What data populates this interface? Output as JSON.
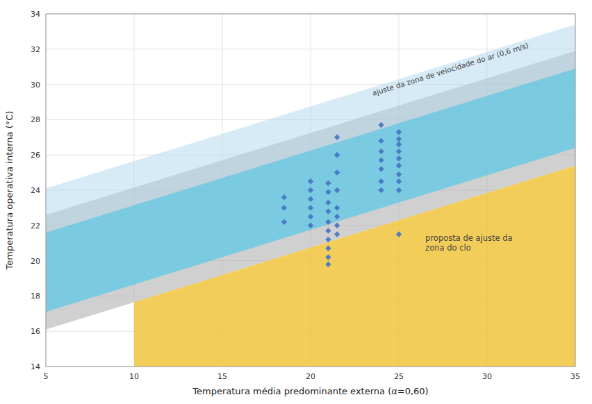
{
  "chart_data": {
    "type": "scatter",
    "xlabel": "Temperatura média predominante externa (α=0,60)",
    "ylabel": "Temperatura operativa interna (°C)",
    "xlim": [
      5,
      35
    ],
    "ylim": [
      14,
      34
    ],
    "xticks": [
      5,
      10,
      15,
      20,
      25,
      30,
      35
    ],
    "yticks": [
      14,
      16,
      18,
      20,
      22,
      24,
      26,
      28,
      30,
      32,
      34
    ],
    "grid": true,
    "bands": [
      {
        "color": "#aaaaaa",
        "x": [
          5,
          35
        ],
        "lower": [
          16.1,
          25.4
        ],
        "upper": [
          22.6,
          31.9
        ]
      },
      {
        "color": "#f0c030",
        "x": [
          10,
          35
        ],
        "lower": [
          14,
          14
        ],
        "upper": [
          17.65,
          25.4
        ]
      },
      {
        "color": "#55c8e8",
        "x": [
          5,
          35
        ],
        "lower": [
          17.1,
          26.4
        ],
        "upper": [
          21.6,
          30.9
        ]
      },
      {
        "color": "#b0d8ee",
        "x": [
          5,
          35
        ],
        "lower": [
          21.6,
          30.9
        ],
        "upper": [
          24.1,
          33.4
        ]
      }
    ],
    "series": [
      {
        "color": "#4472C4",
        "marker": "diamond",
        "x": [
          18.5,
          18.5,
          18.5,
          20.0,
          20.0,
          20.0,
          20.0,
          20.0,
          20.0,
          21.0,
          21.0,
          21.0,
          21.0,
          21.0,
          21.0,
          21.0,
          21.0,
          21.0,
          21.0,
          21.5,
          21.5,
          21.5,
          21.5,
          21.5,
          21.5,
          21.5,
          21.5,
          24.0,
          24.0,
          24.0,
          24.0,
          24.0,
          24.0,
          24.0,
          25.0,
          25.0,
          25.0,
          25.0,
          25.0,
          25.0,
          25.0,
          25.0,
          25.0,
          25.0
        ],
        "values": [
          22.2,
          23.0,
          23.6,
          22.0,
          22.5,
          23.0,
          23.5,
          24.0,
          24.5,
          19.8,
          20.2,
          20.7,
          21.2,
          21.7,
          22.2,
          22.8,
          23.3,
          23.9,
          24.4,
          21.5,
          22.0,
          22.5,
          23.0,
          24.0,
          25.0,
          26.0,
          27.0,
          24.0,
          24.5,
          25.2,
          25.7,
          26.2,
          26.8,
          27.7,
          21.5,
          24.0,
          24.5,
          24.9,
          25.4,
          25.8,
          26.2,
          26.6,
          26.9,
          27.3
        ]
      }
    ],
    "annotations": [
      {
        "text": "ajuste da zona de velocidade do ar (0,6 m/s)",
        "x": 23.5,
        "y": 29.5
      },
      {
        "text": "proposta de ajuste da\nzona do clo",
        "x": 26.5,
        "y": 21.0
      }
    ]
  }
}
